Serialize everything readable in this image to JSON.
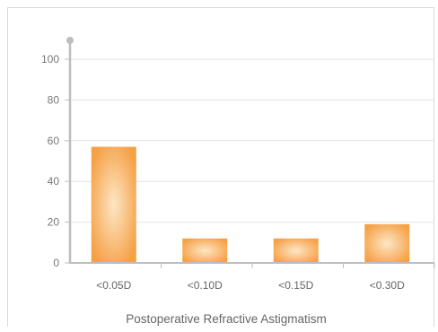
{
  "chart_data": {
    "type": "bar",
    "categories": [
      "<0.05D",
      "<0.10D",
      "<0.15D",
      "<0.30D"
    ],
    "values": [
      57,
      12,
      12,
      19
    ],
    "title": "",
    "xlabel": "Postoperative Refractive Astigmatism",
    "ylabel": "",
    "ylim": [
      0,
      100
    ],
    "yticks": [
      0,
      20,
      40,
      60,
      80,
      100
    ],
    "grid": true,
    "bar_color": "#f5a044",
    "bar_highlight": "#fde6c6",
    "axis_color": "#bdbdbd",
    "grid_color": "#e3e3e3"
  }
}
